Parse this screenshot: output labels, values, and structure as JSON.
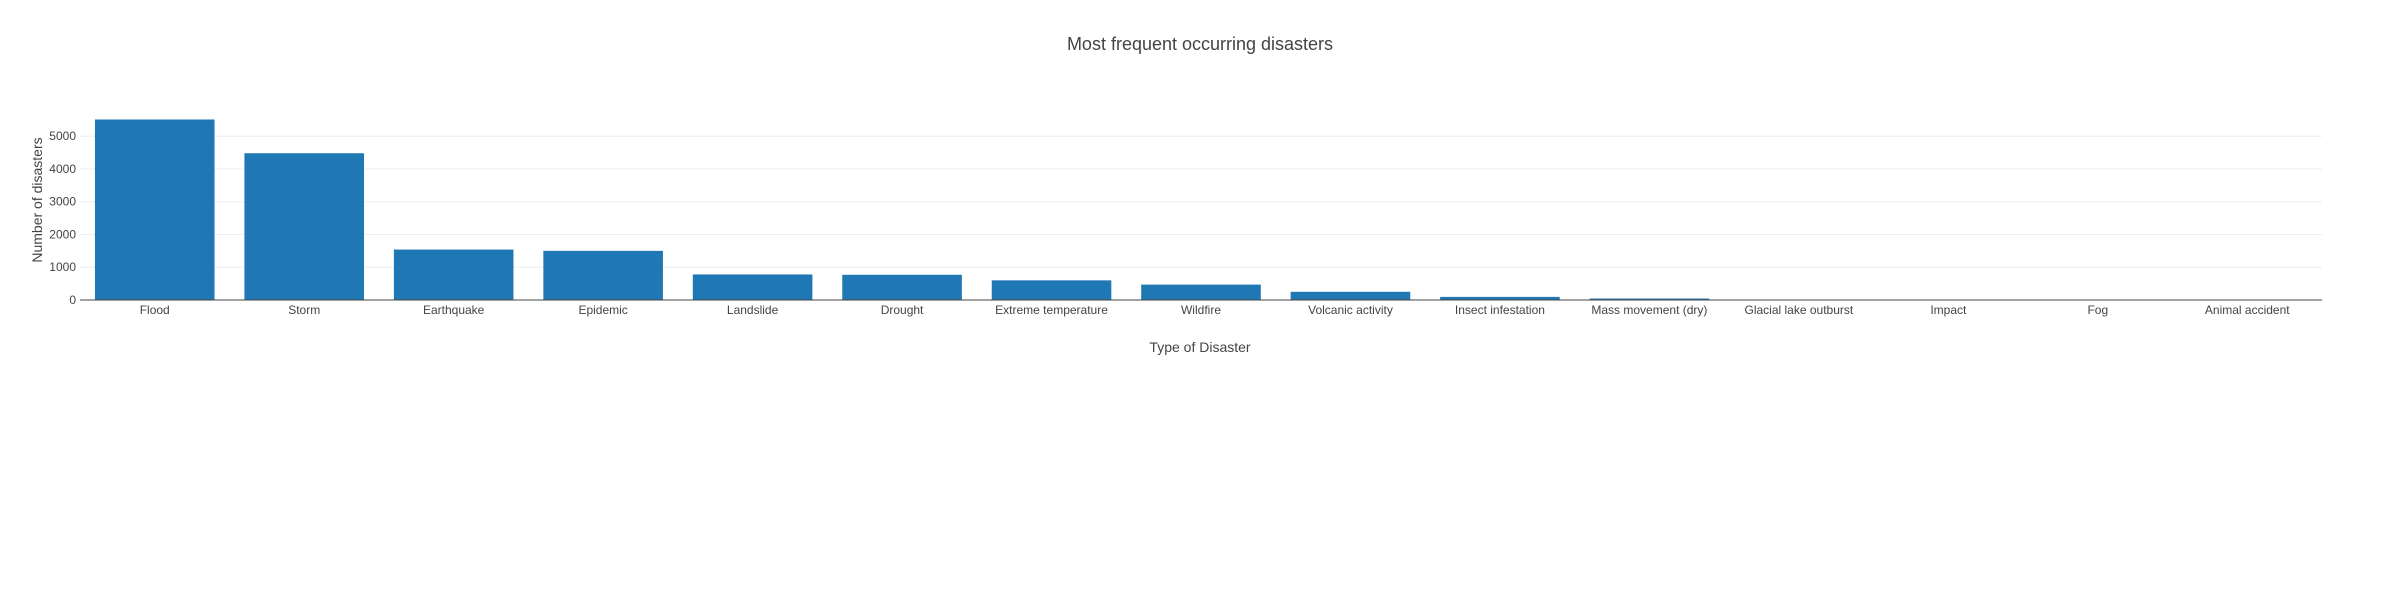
{
  "chart_data": {
    "type": "bar",
    "title": "Most frequent occurring disasters",
    "xlabel": "Type of Disaster",
    "ylabel": "Number of disasters",
    "categories": [
      "Flood",
      "Storm",
      "Earthquake",
      "Epidemic",
      "Landslide",
      "Drought",
      "Extreme temperature",
      "Wildfire",
      "Volcanic activity",
      "Insect infestation",
      "Mass movement (dry)",
      "Glacial lake outburst",
      "Impact",
      "Fog",
      "Animal accident"
    ],
    "values": [
      5510,
      4480,
      1540,
      1500,
      780,
      770,
      600,
      470,
      250,
      95,
      45,
      3,
      1,
      1,
      1
    ],
    "ylim": [
      0,
      5800
    ],
    "yticks": [
      0,
      1000,
      2000,
      3000,
      4000,
      5000
    ],
    "grid": true,
    "legend": "none",
    "bar_color": "#1f77b4"
  }
}
